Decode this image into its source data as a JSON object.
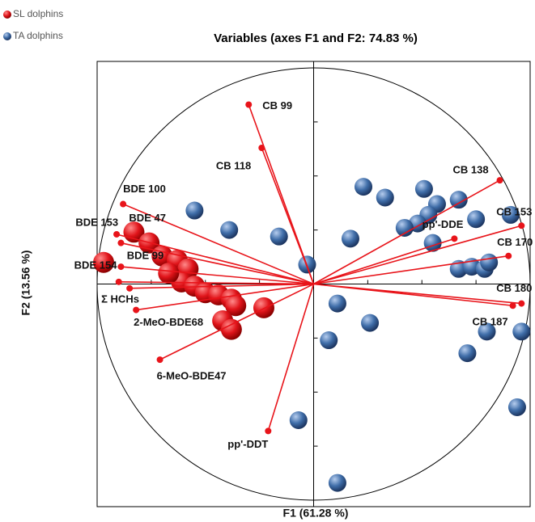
{
  "chart_data": {
    "type": "biplot",
    "title": "Variables (axes F1 and F2: 74.83 %)",
    "x_label": "F1 (61.28 %)",
    "y_label": "F2 (13.56 %)",
    "xlim": [
      -1,
      1
    ],
    "ylim": [
      -1.03,
      1.03
    ],
    "xticks": [
      -0.75,
      -0.5,
      -0.25,
      0.25,
      0.5,
      0.75
    ],
    "yticks": [
      -0.75,
      -0.5,
      -0.25,
      0.25,
      0.5,
      0.75
    ],
    "vector_color": "#e8141a",
    "series": [
      {
        "name": "SL dolphins",
        "color": "#e0141a",
        "x": [
          -0.97,
          -0.83,
          -0.76,
          -0.7,
          -0.63,
          -0.58,
          -0.61,
          -0.55,
          -0.5,
          -0.44,
          -0.38,
          -0.36,
          -0.42,
          -0.38,
          -0.23,
          -0.67
        ],
        "y": [
          0.1,
          0.24,
          0.19,
          0.13,
          0.11,
          0.07,
          0.01,
          -0.01,
          -0.04,
          -0.05,
          -0.07,
          -0.1,
          -0.17,
          -0.21,
          -0.11,
          0.05
        ]
      },
      {
        "name": "TA dolphins",
        "color": "#3f6da8",
        "x": [
          -0.55,
          -0.39,
          -0.16,
          0.17,
          -0.03,
          0.23,
          0.33,
          0.51,
          0.57,
          0.67,
          0.53,
          0.48,
          0.42,
          0.55,
          0.75,
          0.67,
          0.73,
          0.79,
          0.81,
          0.91,
          0.96,
          0.8,
          0.71,
          0.11,
          0.26,
          0.07,
          -0.07,
          0.94,
          0.11
        ],
        "y": [
          0.34,
          0.25,
          0.22,
          0.21,
          0.09,
          0.45,
          0.4,
          0.44,
          0.37,
          0.39,
          0.32,
          0.28,
          0.26,
          0.19,
          0.3,
          0.07,
          0.08,
          0.07,
          0.1,
          0.32,
          -0.22,
          -0.22,
          -0.32,
          -0.09,
          -0.18,
          -0.26,
          -0.63,
          -0.57,
          -0.92
        ]
      }
    ],
    "vectors": {
      "labels": [
        "CB 99",
        "CB 118",
        "CB 138",
        "CB 153",
        "pp'-DDE",
        "CB 170",
        "CB 180",
        "CB 187",
        "BDE 100",
        "BDE 153",
        "BDE 47",
        "BDE 154",
        "BDE 99",
        "Σ HCHs",
        "2-MeO-BDE68",
        "6-MeO-BDE47",
        "pp'-DDT"
      ],
      "x": [
        -0.3,
        -0.24,
        0.86,
        0.96,
        0.65,
        0.9,
        0.96,
        0.92,
        -0.88,
        -0.91,
        -0.89,
        -0.89,
        -0.9,
        -0.85,
        -0.82,
        -0.71,
        -0.21
      ],
      "y": [
        0.83,
        0.63,
        0.48,
        0.27,
        0.21,
        0.13,
        -0.09,
        -0.1,
        0.37,
        0.23,
        0.19,
        0.08,
        0.01,
        -0.02,
        -0.12,
        -0.35,
        -0.68
      ]
    }
  }
}
